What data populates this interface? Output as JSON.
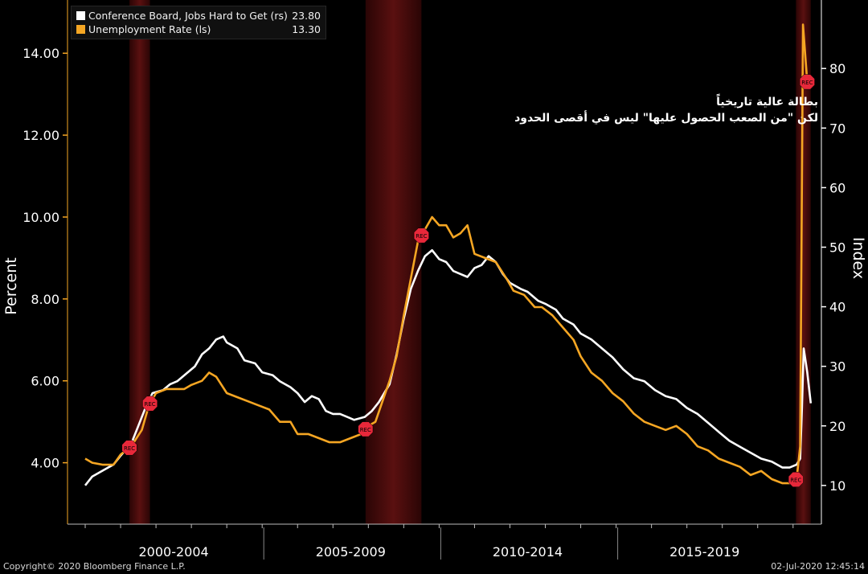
{
  "chart_data": {
    "type": "line",
    "y_left_label": "Percent",
    "y_right_label": "Index",
    "y_left_range": [
      2.5,
      15.3
    ],
    "y_right_range": [
      3.5,
      91.5
    ],
    "y_left_ticks": [
      "4.00",
      "6.00",
      "8.00",
      "10.00",
      "12.00",
      "14.00"
    ],
    "y_right_ticks": [
      "10",
      "20",
      "30",
      "40",
      "50",
      "60",
      "70",
      "80"
    ],
    "x_range": [
      1999.5,
      2020.8
    ],
    "x_periods": [
      "2000-2004",
      "2005-2009",
      "2010-2014",
      "2015-2019"
    ],
    "grid": false,
    "legend_position": "top-left",
    "recession_label": "REC",
    "recessions": [
      {
        "start": 2001.25,
        "end": 2001.83
      },
      {
        "start": 2007.92,
        "end": 2009.5
      },
      {
        "start": 2020.08,
        "end": 2020.5
      }
    ],
    "series": [
      {
        "name": "Conference Board, Jobs Hard to Get (rs)",
        "axis": "right",
        "color": "#ffffff",
        "last_value": "23.80",
        "points": [
          [
            2000.0,
            10.0
          ],
          [
            2000.2,
            11.5
          ],
          [
            2000.5,
            12.5
          ],
          [
            2000.8,
            13.5
          ],
          [
            2001.0,
            15.0
          ],
          [
            2001.3,
            17.0
          ],
          [
            2001.5,
            20.0
          ],
          [
            2001.7,
            23.0
          ],
          [
            2001.9,
            25.5
          ],
          [
            2002.2,
            26.0
          ],
          [
            2002.4,
            27.0
          ],
          [
            2002.6,
            27.5
          ],
          [
            2002.9,
            29.0
          ],
          [
            2003.1,
            30.0
          ],
          [
            2003.3,
            32.0
          ],
          [
            2003.5,
            33.0
          ],
          [
            2003.7,
            34.5
          ],
          [
            2003.9,
            35.0
          ],
          [
            2004.0,
            34.0
          ],
          [
            2004.3,
            33.0
          ],
          [
            2004.5,
            31.0
          ],
          [
            2004.8,
            30.5
          ],
          [
            2005.0,
            29.0
          ],
          [
            2005.3,
            28.5
          ],
          [
            2005.5,
            27.5
          ],
          [
            2005.8,
            26.5
          ],
          [
            2006.0,
            25.5
          ],
          [
            2006.2,
            24.0
          ],
          [
            2006.4,
            25.0
          ],
          [
            2006.6,
            24.5
          ],
          [
            2006.8,
            22.5
          ],
          [
            2007.0,
            22.0
          ],
          [
            2007.2,
            22.0
          ],
          [
            2007.4,
            21.5
          ],
          [
            2007.6,
            21.0
          ],
          [
            2007.9,
            21.5
          ],
          [
            2008.1,
            22.5
          ],
          [
            2008.3,
            24.0
          ],
          [
            2008.6,
            27.0
          ],
          [
            2008.8,
            32.0
          ],
          [
            2009.0,
            38.0
          ],
          [
            2009.2,
            43.0
          ],
          [
            2009.4,
            46.0
          ],
          [
            2009.6,
            48.5
          ],
          [
            2009.8,
            49.5
          ],
          [
            2010.0,
            48.0
          ],
          [
            2010.2,
            47.5
          ],
          [
            2010.4,
            46.0
          ],
          [
            2010.6,
            45.5
          ],
          [
            2010.8,
            45.0
          ],
          [
            2011.0,
            46.5
          ],
          [
            2011.2,
            47.0
          ],
          [
            2011.4,
            48.5
          ],
          [
            2011.6,
            47.5
          ],
          [
            2011.8,
            45.5
          ],
          [
            2012.0,
            44.0
          ],
          [
            2012.3,
            43.0
          ],
          [
            2012.5,
            42.5
          ],
          [
            2012.8,
            41.0
          ],
          [
            2013.0,
            40.5
          ],
          [
            2013.3,
            39.5
          ],
          [
            2013.5,
            38.0
          ],
          [
            2013.8,
            37.0
          ],
          [
            2014.0,
            35.5
          ],
          [
            2014.3,
            34.5
          ],
          [
            2014.6,
            33.0
          ],
          [
            2014.9,
            31.5
          ],
          [
            2015.2,
            29.5
          ],
          [
            2015.5,
            28.0
          ],
          [
            2015.8,
            27.5
          ],
          [
            2016.1,
            26.0
          ],
          [
            2016.4,
            25.0
          ],
          [
            2016.7,
            24.5
          ],
          [
            2017.0,
            23.0
          ],
          [
            2017.3,
            22.0
          ],
          [
            2017.6,
            20.5
          ],
          [
            2017.9,
            19.0
          ],
          [
            2018.2,
            17.5
          ],
          [
            2018.5,
            16.5
          ],
          [
            2018.8,
            15.5
          ],
          [
            2019.1,
            14.5
          ],
          [
            2019.4,
            14.0
          ],
          [
            2019.7,
            13.0
          ],
          [
            2019.9,
            13.0
          ],
          [
            2020.1,
            13.5
          ],
          [
            2020.2,
            14.5
          ],
          [
            2020.25,
            23.0
          ],
          [
            2020.3,
            33.0
          ],
          [
            2020.4,
            29.0
          ],
          [
            2020.5,
            23.8
          ]
        ]
      },
      {
        "name": "Unemployment Rate (ls)",
        "axis": "left",
        "color": "#f5a623",
        "last_value": "13.30",
        "points": [
          [
            2000.0,
            4.1
          ],
          [
            2000.2,
            4.0
          ],
          [
            2000.5,
            3.95
          ],
          [
            2000.8,
            3.95
          ],
          [
            2001.0,
            4.2
          ],
          [
            2001.3,
            4.4
          ],
          [
            2001.6,
            4.8
          ],
          [
            2001.8,
            5.4
          ],
          [
            2002.0,
            5.7
          ],
          [
            2002.3,
            5.8
          ],
          [
            2002.5,
            5.8
          ],
          [
            2002.8,
            5.8
          ],
          [
            2003.0,
            5.9
          ],
          [
            2003.3,
            6.0
          ],
          [
            2003.5,
            6.2
          ],
          [
            2003.7,
            6.1
          ],
          [
            2004.0,
            5.7
          ],
          [
            2004.3,
            5.6
          ],
          [
            2004.6,
            5.5
          ],
          [
            2004.9,
            5.4
          ],
          [
            2005.2,
            5.3
          ],
          [
            2005.5,
            5.0
          ],
          [
            2005.8,
            5.0
          ],
          [
            2006.0,
            4.7
          ],
          [
            2006.3,
            4.7
          ],
          [
            2006.6,
            4.6
          ],
          [
            2006.9,
            4.5
          ],
          [
            2007.2,
            4.5
          ],
          [
            2007.5,
            4.6
          ],
          [
            2007.8,
            4.7
          ],
          [
            2008.0,
            4.9
          ],
          [
            2008.2,
            5.0
          ],
          [
            2008.4,
            5.5
          ],
          [
            2008.6,
            6.0
          ],
          [
            2008.8,
            6.6
          ],
          [
            2009.0,
            7.6
          ],
          [
            2009.2,
            8.5
          ],
          [
            2009.4,
            9.4
          ],
          [
            2009.6,
            9.7
          ],
          [
            2009.8,
            10.0
          ],
          [
            2010.0,
            9.8
          ],
          [
            2010.2,
            9.8
          ],
          [
            2010.4,
            9.5
          ],
          [
            2010.6,
            9.6
          ],
          [
            2010.8,
            9.8
          ],
          [
            2011.0,
            9.1
          ],
          [
            2011.3,
            9.0
          ],
          [
            2011.6,
            8.9
          ],
          [
            2011.9,
            8.5
          ],
          [
            2012.1,
            8.2
          ],
          [
            2012.4,
            8.1
          ],
          [
            2012.7,
            7.8
          ],
          [
            2012.9,
            7.8
          ],
          [
            2013.2,
            7.6
          ],
          [
            2013.5,
            7.3
          ],
          [
            2013.8,
            7.0
          ],
          [
            2014.0,
            6.6
          ],
          [
            2014.3,
            6.2
          ],
          [
            2014.6,
            6.0
          ],
          [
            2014.9,
            5.7
          ],
          [
            2015.2,
            5.5
          ],
          [
            2015.5,
            5.2
          ],
          [
            2015.8,
            5.0
          ],
          [
            2016.1,
            4.9
          ],
          [
            2016.4,
            4.8
          ],
          [
            2016.7,
            4.9
          ],
          [
            2017.0,
            4.7
          ],
          [
            2017.3,
            4.4
          ],
          [
            2017.6,
            4.3
          ],
          [
            2017.9,
            4.1
          ],
          [
            2018.2,
            4.0
          ],
          [
            2018.5,
            3.9
          ],
          [
            2018.8,
            3.7
          ],
          [
            2019.1,
            3.8
          ],
          [
            2019.4,
            3.6
          ],
          [
            2019.7,
            3.5
          ],
          [
            2019.9,
            3.5
          ],
          [
            2020.1,
            3.6
          ],
          [
            2020.2,
            4.4
          ],
          [
            2020.28,
            14.7
          ],
          [
            2020.4,
            13.3
          ],
          [
            2020.5,
            13.3
          ]
        ]
      }
    ]
  },
  "annotation_lines": [
    "بطالة عالية تاريخياً",
    "لكن \"من الصعب الحصول عليها\" ليس في أقصى الحدود"
  ],
  "footer": {
    "copyright": "Copyright© 2020 Bloomberg Finance L.P.",
    "timestamp": "02-Jul-2020 12:45:14"
  },
  "colors": {
    "background": "#000000",
    "recession_band": "#5a1010",
    "recession_edge": "#2a0505",
    "recession_marker": "#e8283a",
    "unemployment": "#f5a623",
    "jobs_hard_to_get": "#ffffff",
    "left_axis": "#f5a623",
    "right_axis": "#ffffff"
  }
}
